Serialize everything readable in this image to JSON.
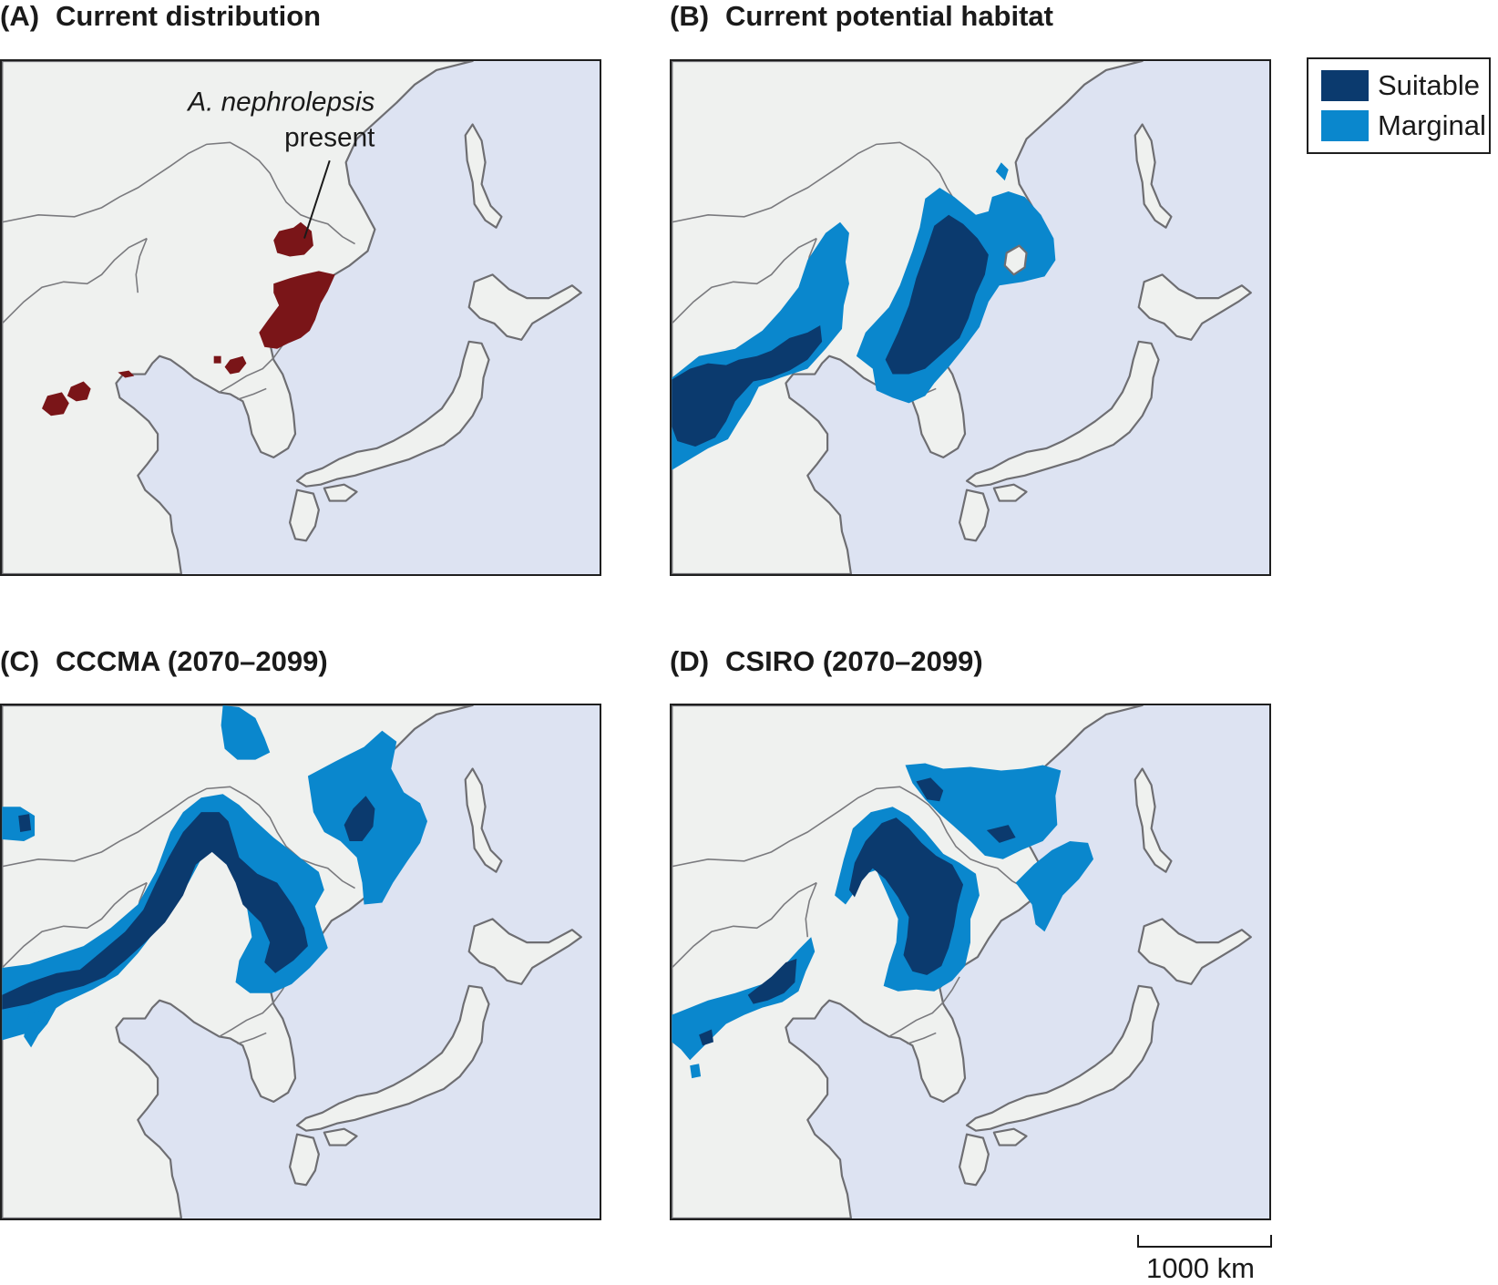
{
  "panels": [
    {
      "letter": "(A)",
      "title": "Current distribution"
    },
    {
      "letter": "(B)",
      "title": "Current potential habitat"
    },
    {
      "letter": "(C)",
      "title": "CCCMA (2070–2099)"
    },
    {
      "letter": "(D)",
      "title": "CSIRO (2070–2099)"
    }
  ],
  "annotation": {
    "species": "A. nephrolepsis",
    "status": "present"
  },
  "legend": {
    "items": [
      {
        "label": "Suitable",
        "color": "#0b3a6e"
      },
      {
        "label": "Marginal",
        "color": "#0a87cd"
      }
    ]
  },
  "scale": {
    "label": "1000 km"
  },
  "colors": {
    "sea": "#dde3f2",
    "land": "#eff1ef",
    "present": "#7a1518"
  }
}
